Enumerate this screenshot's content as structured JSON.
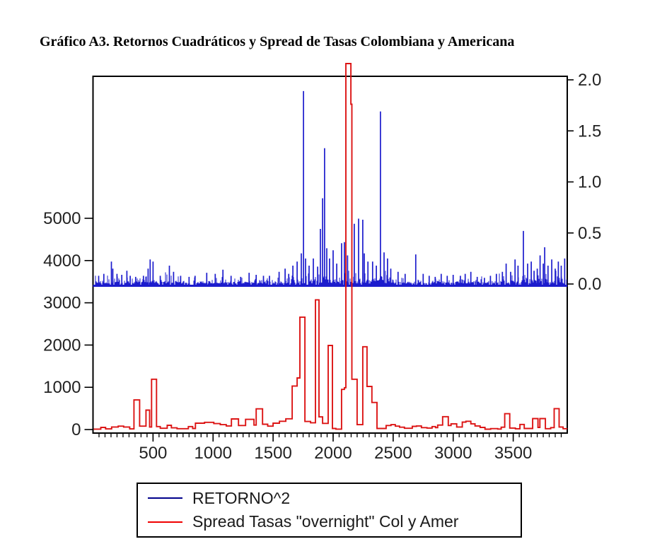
{
  "title": "Gráfico A3. Retornos Cuadráticos y Spread de Tasas Colombiana y Americana",
  "chart_data": {
    "type": "line",
    "title": "Gráfico A3. Retornos Cuadráticos y Spread de Tasas Colombiana y Americana",
    "xlabel": "",
    "ylabel_left": "",
    "ylabel_right": "",
    "x_axis": {
      "min": 0,
      "max": 3950,
      "major_tick_values": [
        500,
        1000,
        1500,
        2000,
        2500,
        3000,
        3500
      ],
      "major_tick_labels": [
        "500",
        "1000",
        "1500",
        "2000",
        "2500",
        "3000",
        "3500"
      ],
      "minor_tick_step": 50
    },
    "left_axis": {
      "tick_values": [
        0,
        1000,
        2000,
        3000,
        4000,
        5000
      ],
      "tick_labels": [
        "0",
        "1000",
        "2000",
        "3000",
        "4000",
        "5000"
      ],
      "units_per_px": "about 8470 at plot top",
      "applies_to": "Spread Tasas \"overnight\" Col y Amer"
    },
    "right_axis": {
      "tick_values": [
        0.0,
        0.5,
        1.0,
        1.5,
        2.0
      ],
      "tick_labels": [
        "0.0",
        "0.5",
        "1.0",
        "1.5",
        "2.0"
      ],
      "applies_to": "RETORNO^2"
    },
    "grid": false,
    "series": [
      {
        "name": "RETORNO^2",
        "axis": "right",
        "color": "#1c1ccd",
        "style": "spikes-from-zero-baseline",
        "baseline_value": 0.0,
        "spikes": [
          [
            47,
            0.08
          ],
          [
            90,
            0.1
          ],
          [
            153,
            0.22
          ],
          [
            165,
            0.15
          ],
          [
            200,
            0.1
          ],
          [
            240,
            0.09
          ],
          [
            282,
            0.13
          ],
          [
            310,
            0.08
          ],
          [
            355,
            0.07
          ],
          [
            420,
            0.08
          ],
          [
            459,
            0.15
          ],
          [
            476,
            0.24
          ],
          [
            500,
            0.22
          ],
          [
            560,
            0.08
          ],
          [
            636,
            0.18
          ],
          [
            671,
            0.12
          ],
          [
            730,
            0.08
          ],
          [
            800,
            0.07
          ],
          [
            850,
            0.08
          ],
          [
            947,
            0.11
          ],
          [
            1018,
            0.1
          ],
          [
            1082,
            0.14
          ],
          [
            1150,
            0.08
          ],
          [
            1230,
            0.07
          ],
          [
            1300,
            0.11
          ],
          [
            1359,
            0.09
          ],
          [
            1420,
            0.08
          ],
          [
            1470,
            0.08
          ],
          [
            1550,
            0.12
          ],
          [
            1600,
            0.15
          ],
          [
            1630,
            0.1
          ],
          [
            1665,
            0.18
          ],
          [
            1700,
            0.22
          ],
          [
            1735,
            0.3
          ],
          [
            1753,
            1.89
          ],
          [
            1770,
            0.25
          ],
          [
            1800,
            0.18
          ],
          [
            1835,
            0.25
          ],
          [
            1871,
            0.17
          ],
          [
            1894,
            0.54
          ],
          [
            1912,
            0.84
          ],
          [
            1929,
            1.33
          ],
          [
            1947,
            0.35
          ],
          [
            1970,
            0.25
          ],
          [
            2000,
            0.33
          ],
          [
            2030,
            0.2
          ],
          [
            2071,
            0.4
          ],
          [
            2094,
            0.41
          ],
          [
            2120,
            0.28
          ],
          [
            2176,
            0.59
          ],
          [
            2212,
            0.64
          ],
          [
            2247,
            0.63
          ],
          [
            2259,
            0.3
          ],
          [
            2290,
            0.22
          ],
          [
            2329,
            0.22
          ],
          [
            2360,
            0.18
          ],
          [
            2394,
            1.69
          ],
          [
            2424,
            0.31
          ],
          [
            2453,
            0.25
          ],
          [
            2480,
            0.15
          ],
          [
            2541,
            0.12
          ],
          [
            2600,
            0.1
          ],
          [
            2688,
            0.29
          ],
          [
            2750,
            0.1
          ],
          [
            2800,
            0.08
          ],
          [
            2850,
            0.07
          ],
          [
            2900,
            0.1
          ],
          [
            2950,
            0.08
          ],
          [
            3000,
            0.09
          ],
          [
            3060,
            0.08
          ],
          [
            3100,
            0.1
          ],
          [
            3147,
            0.12
          ],
          [
            3200,
            0.07
          ],
          [
            3260,
            0.06
          ],
          [
            3310,
            0.08
          ],
          [
            3360,
            0.1
          ],
          [
            3410,
            0.12
          ],
          [
            3441,
            0.2
          ],
          [
            3479,
            0.12
          ],
          [
            3515,
            0.24
          ],
          [
            3540,
            0.18
          ],
          [
            3585,
            0.52
          ],
          [
            3620,
            0.2
          ],
          [
            3650,
            0.22
          ],
          [
            3674,
            0.13
          ],
          [
            3700,
            0.15
          ],
          [
            3724,
            0.28
          ],
          [
            3750,
            0.2
          ],
          [
            3762,
            0.36
          ],
          [
            3790,
            0.18
          ],
          [
            3821,
            0.24
          ],
          [
            3850,
            0.15
          ],
          [
            3876,
            0.22
          ],
          [
            3900,
            0.18
          ],
          [
            3929,
            0.25
          ]
        ],
        "noise_texture": {
          "seed": 7,
          "base_amplitude": 0.016,
          "cap": 0.13,
          "regions": [
            {
              "from": 0,
              "to": 620,
              "mult": 1.35
            },
            {
              "from": 1600,
              "to": 2520,
              "mult": 2.3
            },
            {
              "from": 3380,
              "to": 3950,
              "mult": 1.8
            }
          ]
        }
      },
      {
        "name": "Spread Tasas \"overnight\" Col y Amer",
        "axis": "left",
        "color": "#dc1414",
        "style": "step",
        "peak_note": "peak near x=2106 exceeds plot top (>8500, clipped)",
        "steps": [
          [
            5,
            10
          ],
          [
            65,
            50
          ],
          [
            105,
            15
          ],
          [
            155,
            60
          ],
          [
            210,
            80
          ],
          [
            255,
            60
          ],
          [
            306,
            15
          ],
          [
            341,
            700
          ],
          [
            388,
            80
          ],
          [
            441,
            460
          ],
          [
            471,
            60
          ],
          [
            488,
            1190
          ],
          [
            529,
            70
          ],
          [
            560,
            30
          ],
          [
            618,
            100
          ],
          [
            653,
            40
          ],
          [
            700,
            20
          ],
          [
            794,
            70
          ],
          [
            830,
            25
          ],
          [
            853,
            150
          ],
          [
            929,
            170
          ],
          [
            1006,
            140
          ],
          [
            1060,
            115
          ],
          [
            1110,
            85
          ],
          [
            1153,
            250
          ],
          [
            1212,
            95
          ],
          [
            1271,
            240
          ],
          [
            1341,
            105
          ],
          [
            1359,
            490
          ],
          [
            1412,
            125
          ],
          [
            1455,
            80
          ],
          [
            1500,
            150
          ],
          [
            1553,
            195
          ],
          [
            1606,
            255
          ],
          [
            1659,
            1030
          ],
          [
            1700,
            1220
          ],
          [
            1723,
            2660
          ],
          [
            1765,
            190
          ],
          [
            1812,
            160
          ],
          [
            1853,
            3070
          ],
          [
            1882,
            300
          ],
          [
            1912,
            145
          ],
          [
            1959,
            1990
          ],
          [
            1994,
            25
          ],
          [
            2023,
            10
          ],
          [
            2070,
            950
          ],
          [
            2094,
            990
          ],
          [
            2106,
            9000
          ],
          [
            2148,
            7700
          ],
          [
            2156,
            1190
          ],
          [
            2200,
            115
          ],
          [
            2247,
            1960
          ],
          [
            2282,
            1020
          ],
          [
            2323,
            640
          ],
          [
            2365,
            25
          ],
          [
            2441,
            95
          ],
          [
            2482,
            115
          ],
          [
            2518,
            80
          ],
          [
            2553,
            55
          ],
          [
            2594,
            30
          ],
          [
            2659,
            75
          ],
          [
            2694,
            85
          ],
          [
            2735,
            45
          ],
          [
            2782,
            35
          ],
          [
            2824,
            70
          ],
          [
            2853,
            45
          ],
          [
            2871,
            105
          ],
          [
            2912,
            305
          ],
          [
            2959,
            95
          ],
          [
            2982,
            135
          ],
          [
            3029,
            60
          ],
          [
            3076,
            175
          ],
          [
            3106,
            195
          ],
          [
            3147,
            135
          ],
          [
            3182,
            85
          ],
          [
            3224,
            50
          ],
          [
            3265,
            8
          ],
          [
            3312,
            22
          ],
          [
            3371,
            12
          ],
          [
            3400,
            55
          ],
          [
            3429,
            375
          ],
          [
            3471,
            35
          ],
          [
            3518,
            18
          ],
          [
            3556,
            120
          ],
          [
            3592,
            25
          ],
          [
            3662,
            260
          ],
          [
            3706,
            50
          ],
          [
            3722,
            260
          ],
          [
            3768,
            20
          ],
          [
            3812,
            45
          ],
          [
            3841,
            495
          ],
          [
            3882,
            60
          ],
          [
            3915,
            20
          ]
        ]
      }
    ],
    "legend": {
      "position": "bottom",
      "border": true,
      "entries": [
        {
          "label": "RETORNO^2",
          "color": "#00008b"
        },
        {
          "label": "Spread Tasas \"overnight\" Col y Amer",
          "color": "#f00000"
        }
      ]
    }
  }
}
